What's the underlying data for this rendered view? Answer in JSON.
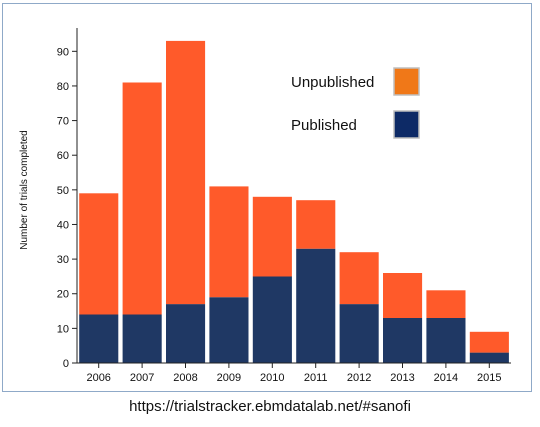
{
  "chart_data": {
    "type": "bar",
    "stacked": true,
    "categories": [
      "2006",
      "2007",
      "2008",
      "2009",
      "2010",
      "2011",
      "2012",
      "2013",
      "2014",
      "2015"
    ],
    "series": [
      {
        "name": "Published",
        "values": [
          14,
          14,
          17,
          19,
          25,
          33,
          17,
          13,
          13,
          3
        ],
        "color": "#1f3864"
      },
      {
        "name": "Unpublished",
        "values": [
          35,
          67,
          76,
          32,
          23,
          14,
          15,
          13,
          8,
          6
        ],
        "color": "#ff5a2a"
      }
    ],
    "totals": [
      49,
      81,
      93,
      51,
      48,
      47,
      32,
      26,
      21,
      9
    ],
    "title": "",
    "xlabel": "",
    "ylabel": "Number of trials completed",
    "ylim": [
      0,
      95
    ],
    "yticks": [
      0,
      10,
      20,
      30,
      40,
      50,
      60,
      70,
      80,
      90
    ],
    "grid": false,
    "legend": {
      "placement": "top-right",
      "items": [
        {
          "label": "Unpublished",
          "swatch_color": "#f07818"
        },
        {
          "label": "Published",
          "swatch_color": "#0d2a66"
        }
      ]
    }
  },
  "caption": "https://trialstracker.ebmdatalab.net/#sanofi"
}
